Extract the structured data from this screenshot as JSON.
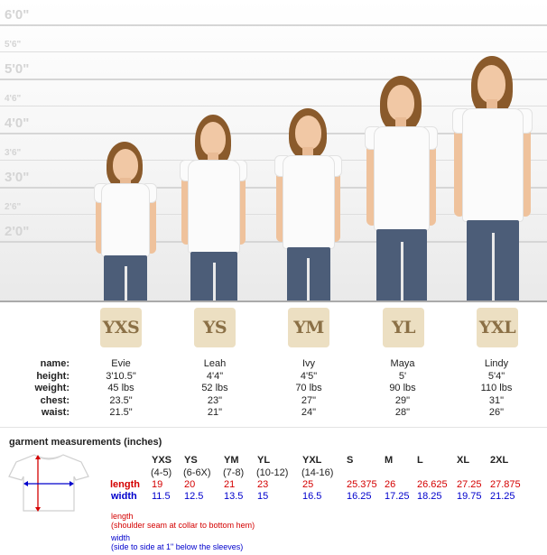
{
  "height_scale": {
    "major": [
      "6'0\"",
      "5'0\"",
      "4'0\"",
      "3'0\"",
      "2'0\""
    ],
    "minor": [
      "5'6\"",
      "4'6\"",
      "3'6\"",
      "2'6\""
    ]
  },
  "spec_labels": [
    "name:",
    "height:",
    "weight:",
    "chest:",
    "waist:"
  ],
  "sizes": [
    {
      "badge": "YXS",
      "name": "Evie",
      "height": "3'10.5\"",
      "weight": "45 lbs",
      "chest": "23.5\"",
      "waist": "21.5\""
    },
    {
      "badge": "YS",
      "name": "Leah",
      "height": "4'4\"",
      "weight": "52 lbs",
      "chest": "23\"",
      "waist": "21\""
    },
    {
      "badge": "YM",
      "name": "Ivy",
      "height": "4'5\"",
      "weight": "70 lbs",
      "chest": "27\"",
      "waist": "24\""
    },
    {
      "badge": "YL",
      "name": "Maya",
      "height": "5'",
      "weight": "90 lbs",
      "chest": "29\"",
      "waist": "28\""
    },
    {
      "badge": "YXL",
      "name": "Lindy",
      "height": "5'4\"",
      "weight": "110 lbs",
      "chest": "31\"",
      "waist": "26\""
    }
  ],
  "garment": {
    "title": "garment measurements (inches)",
    "length_label": "length",
    "width_label": "width",
    "columns": [
      {
        "size": "YXS",
        "age": "(4-5)",
        "length": "19",
        "width": "11.5"
      },
      {
        "size": "YS",
        "age": "(6-6X)",
        "length": "20",
        "width": "12.5"
      },
      {
        "size": "YM",
        "age": "(7-8)",
        "length": "21",
        "width": "13.5"
      },
      {
        "size": "YL",
        "age": "(10-12)",
        "length": "23",
        "width": "15"
      },
      {
        "size": "YXL",
        "age": "(14-16)",
        "length": "25",
        "width": "16.5"
      },
      {
        "size": "S",
        "age": "",
        "length": "25.375",
        "width": "16.25"
      },
      {
        "size": "M",
        "age": "",
        "length": "26",
        "width": "17.25"
      },
      {
        "size": "L",
        "age": "",
        "length": "26.625",
        "width": "18.25"
      },
      {
        "size": "XL",
        "age": "",
        "length": "27.25",
        "width": "19.75"
      },
      {
        "size": "2XL",
        "age": "",
        "length": "27.875",
        "width": "21.25"
      }
    ],
    "notes": {
      "length_title": "length",
      "length_desc": "(shoulder seam at collar to bottom hem)",
      "width_title": "width",
      "width_desc": "(side to side at 1\" below the sleeves)"
    }
  },
  "colors": {
    "length": "#d40000",
    "width": "#0000cc",
    "badge_bg": "#ecdfc2",
    "badge_text": "#8b7046"
  }
}
